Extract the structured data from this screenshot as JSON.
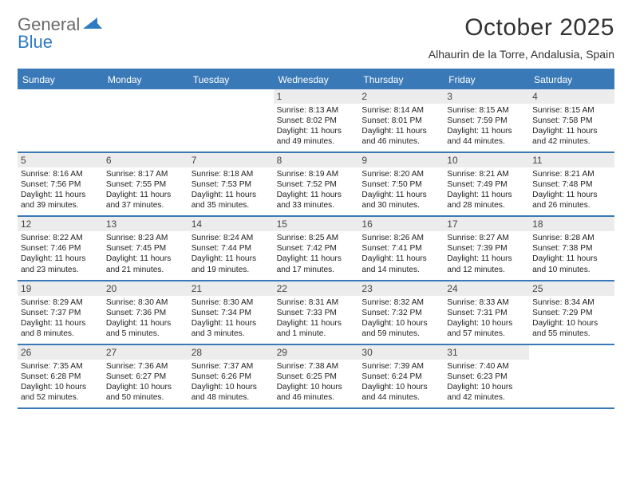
{
  "brand": {
    "word1": "General",
    "word2": "Blue",
    "triangle_color": "#2f7bc2"
  },
  "title": "October 2025",
  "subtitle": "Alhaurin de la Torre, Andalusia, Spain",
  "colors": {
    "header_bg": "#3a79b7",
    "header_text": "#ffffff",
    "rule": "#3a79b7",
    "daynum_bg": "#ececec",
    "text": "#222222",
    "page_bg": "#ffffff"
  },
  "day_headers": [
    "Sunday",
    "Monday",
    "Tuesday",
    "Wednesday",
    "Thursday",
    "Friday",
    "Saturday"
  ],
  "weeks": [
    [
      {
        "n": "",
        "empty": true
      },
      {
        "n": "",
        "empty": true
      },
      {
        "n": "",
        "empty": true
      },
      {
        "n": "1",
        "sunrise": "Sunrise: 8:13 AM",
        "sunset": "Sunset: 8:02 PM",
        "day1": "Daylight: 11 hours",
        "day2": "and 49 minutes."
      },
      {
        "n": "2",
        "sunrise": "Sunrise: 8:14 AM",
        "sunset": "Sunset: 8:01 PM",
        "day1": "Daylight: 11 hours",
        "day2": "and 46 minutes."
      },
      {
        "n": "3",
        "sunrise": "Sunrise: 8:15 AM",
        "sunset": "Sunset: 7:59 PM",
        "day1": "Daylight: 11 hours",
        "day2": "and 44 minutes."
      },
      {
        "n": "4",
        "sunrise": "Sunrise: 8:15 AM",
        "sunset": "Sunset: 7:58 PM",
        "day1": "Daylight: 11 hours",
        "day2": "and 42 minutes."
      }
    ],
    [
      {
        "n": "5",
        "sunrise": "Sunrise: 8:16 AM",
        "sunset": "Sunset: 7:56 PM",
        "day1": "Daylight: 11 hours",
        "day2": "and 39 minutes."
      },
      {
        "n": "6",
        "sunrise": "Sunrise: 8:17 AM",
        "sunset": "Sunset: 7:55 PM",
        "day1": "Daylight: 11 hours",
        "day2": "and 37 minutes."
      },
      {
        "n": "7",
        "sunrise": "Sunrise: 8:18 AM",
        "sunset": "Sunset: 7:53 PM",
        "day1": "Daylight: 11 hours",
        "day2": "and 35 minutes."
      },
      {
        "n": "8",
        "sunrise": "Sunrise: 8:19 AM",
        "sunset": "Sunset: 7:52 PM",
        "day1": "Daylight: 11 hours",
        "day2": "and 33 minutes."
      },
      {
        "n": "9",
        "sunrise": "Sunrise: 8:20 AM",
        "sunset": "Sunset: 7:50 PM",
        "day1": "Daylight: 11 hours",
        "day2": "and 30 minutes."
      },
      {
        "n": "10",
        "sunrise": "Sunrise: 8:21 AM",
        "sunset": "Sunset: 7:49 PM",
        "day1": "Daylight: 11 hours",
        "day2": "and 28 minutes."
      },
      {
        "n": "11",
        "sunrise": "Sunrise: 8:21 AM",
        "sunset": "Sunset: 7:48 PM",
        "day1": "Daylight: 11 hours",
        "day2": "and 26 minutes."
      }
    ],
    [
      {
        "n": "12",
        "sunrise": "Sunrise: 8:22 AM",
        "sunset": "Sunset: 7:46 PM",
        "day1": "Daylight: 11 hours",
        "day2": "and 23 minutes."
      },
      {
        "n": "13",
        "sunrise": "Sunrise: 8:23 AM",
        "sunset": "Sunset: 7:45 PM",
        "day1": "Daylight: 11 hours",
        "day2": "and 21 minutes."
      },
      {
        "n": "14",
        "sunrise": "Sunrise: 8:24 AM",
        "sunset": "Sunset: 7:44 PM",
        "day1": "Daylight: 11 hours",
        "day2": "and 19 minutes."
      },
      {
        "n": "15",
        "sunrise": "Sunrise: 8:25 AM",
        "sunset": "Sunset: 7:42 PM",
        "day1": "Daylight: 11 hours",
        "day2": "and 17 minutes."
      },
      {
        "n": "16",
        "sunrise": "Sunrise: 8:26 AM",
        "sunset": "Sunset: 7:41 PM",
        "day1": "Daylight: 11 hours",
        "day2": "and 14 minutes."
      },
      {
        "n": "17",
        "sunrise": "Sunrise: 8:27 AM",
        "sunset": "Sunset: 7:39 PM",
        "day1": "Daylight: 11 hours",
        "day2": "and 12 minutes."
      },
      {
        "n": "18",
        "sunrise": "Sunrise: 8:28 AM",
        "sunset": "Sunset: 7:38 PM",
        "day1": "Daylight: 11 hours",
        "day2": "and 10 minutes."
      }
    ],
    [
      {
        "n": "19",
        "sunrise": "Sunrise: 8:29 AM",
        "sunset": "Sunset: 7:37 PM",
        "day1": "Daylight: 11 hours",
        "day2": "and 8 minutes."
      },
      {
        "n": "20",
        "sunrise": "Sunrise: 8:30 AM",
        "sunset": "Sunset: 7:36 PM",
        "day1": "Daylight: 11 hours",
        "day2": "and 5 minutes."
      },
      {
        "n": "21",
        "sunrise": "Sunrise: 8:30 AM",
        "sunset": "Sunset: 7:34 PM",
        "day1": "Daylight: 11 hours",
        "day2": "and 3 minutes."
      },
      {
        "n": "22",
        "sunrise": "Sunrise: 8:31 AM",
        "sunset": "Sunset: 7:33 PM",
        "day1": "Daylight: 11 hours",
        "day2": "and 1 minute."
      },
      {
        "n": "23",
        "sunrise": "Sunrise: 8:32 AM",
        "sunset": "Sunset: 7:32 PM",
        "day1": "Daylight: 10 hours",
        "day2": "and 59 minutes."
      },
      {
        "n": "24",
        "sunrise": "Sunrise: 8:33 AM",
        "sunset": "Sunset: 7:31 PM",
        "day1": "Daylight: 10 hours",
        "day2": "and 57 minutes."
      },
      {
        "n": "25",
        "sunrise": "Sunrise: 8:34 AM",
        "sunset": "Sunset: 7:29 PM",
        "day1": "Daylight: 10 hours",
        "day2": "and 55 minutes."
      }
    ],
    [
      {
        "n": "26",
        "sunrise": "Sunrise: 7:35 AM",
        "sunset": "Sunset: 6:28 PM",
        "day1": "Daylight: 10 hours",
        "day2": "and 52 minutes."
      },
      {
        "n": "27",
        "sunrise": "Sunrise: 7:36 AM",
        "sunset": "Sunset: 6:27 PM",
        "day1": "Daylight: 10 hours",
        "day2": "and 50 minutes."
      },
      {
        "n": "28",
        "sunrise": "Sunrise: 7:37 AM",
        "sunset": "Sunset: 6:26 PM",
        "day1": "Daylight: 10 hours",
        "day2": "and 48 minutes."
      },
      {
        "n": "29",
        "sunrise": "Sunrise: 7:38 AM",
        "sunset": "Sunset: 6:25 PM",
        "day1": "Daylight: 10 hours",
        "day2": "and 46 minutes."
      },
      {
        "n": "30",
        "sunrise": "Sunrise: 7:39 AM",
        "sunset": "Sunset: 6:24 PM",
        "day1": "Daylight: 10 hours",
        "day2": "and 44 minutes."
      },
      {
        "n": "31",
        "sunrise": "Sunrise: 7:40 AM",
        "sunset": "Sunset: 6:23 PM",
        "day1": "Daylight: 10 hours",
        "day2": "and 42 minutes."
      },
      {
        "n": "",
        "empty": true
      }
    ]
  ]
}
